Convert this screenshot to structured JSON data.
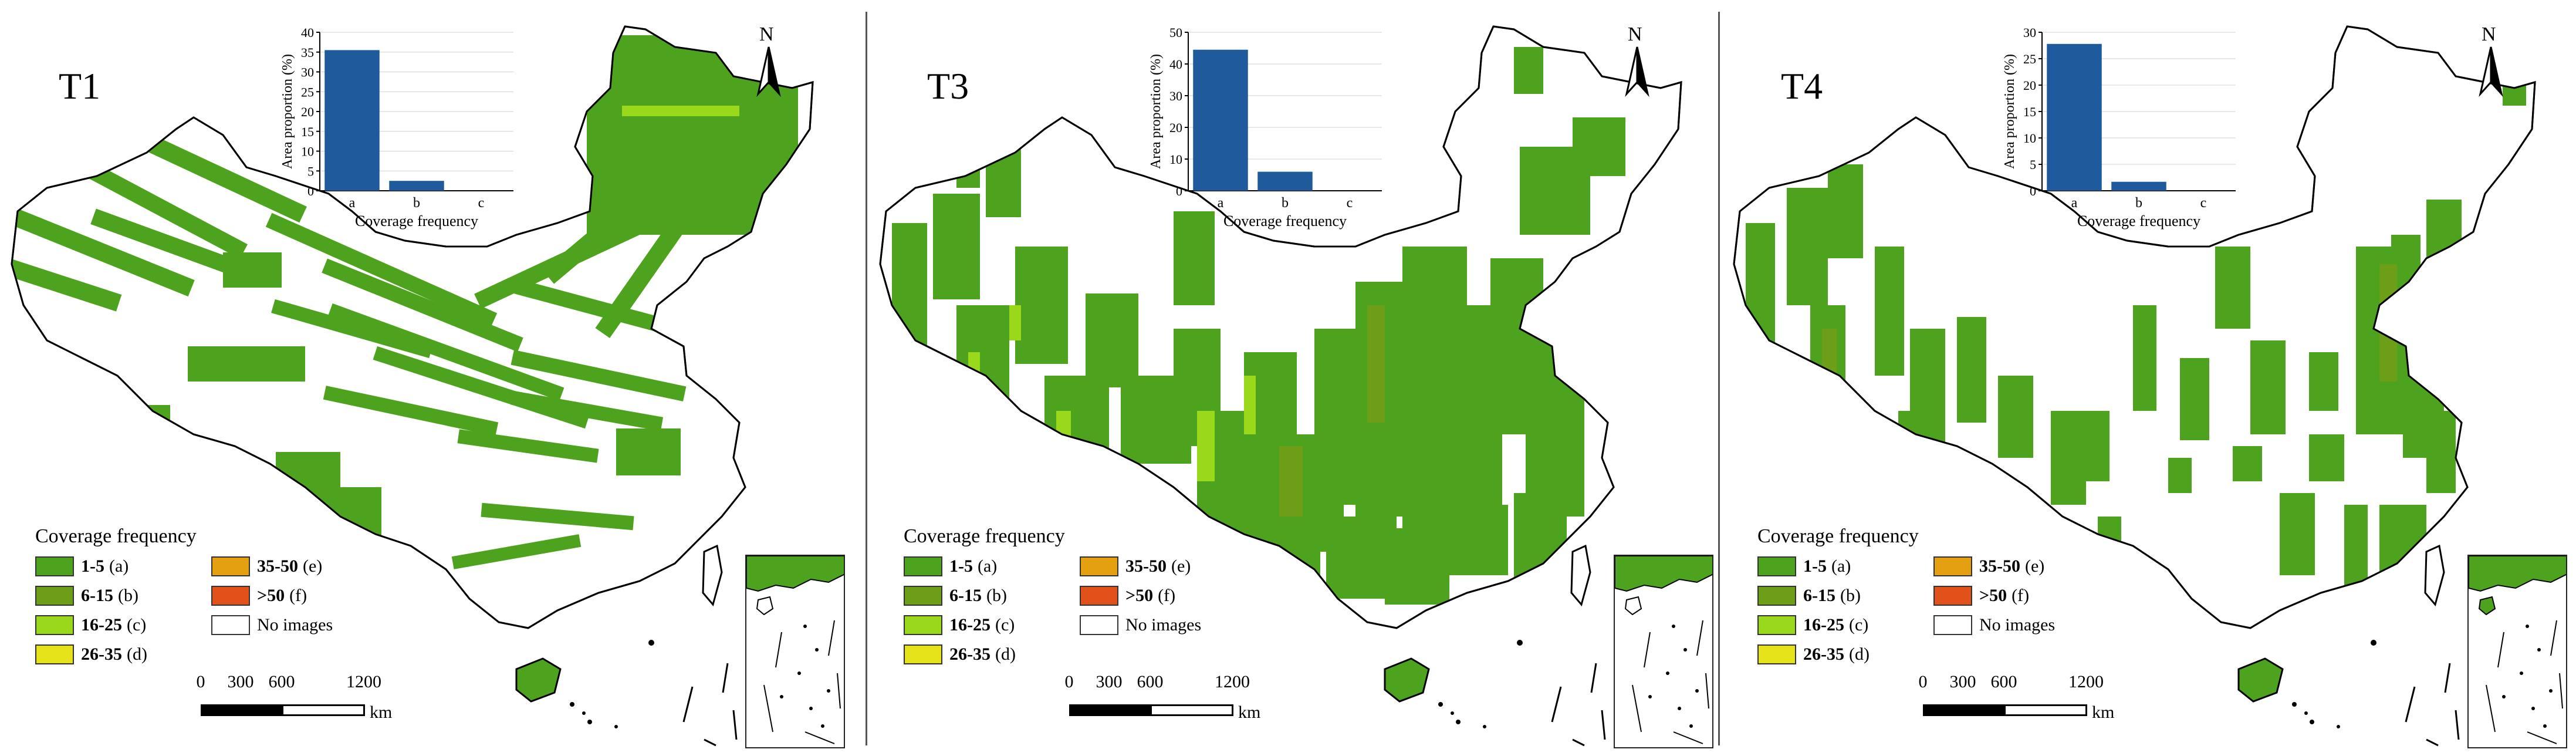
{
  "colors": {
    "cls_a": "#4ea31e",
    "cls_b": "#6d9e18",
    "cls_c": "#9ad81b",
    "cls_d": "#e6e21a",
    "cls_e": "#e5a012",
    "cls_f": "#e0521a",
    "no_images": "#ffffff",
    "bar": "#1f5b9c"
  },
  "legend": {
    "title": "Coverage frequency",
    "items": [
      {
        "range": "1-5",
        "tag": "(a)",
        "color": "#4ea31e"
      },
      {
        "range": "6-15",
        "tag": "(b)",
        "color": "#6d9e18"
      },
      {
        "range": "16-25",
        "tag": "(c)",
        "color": "#9ad81b"
      },
      {
        "range": "26-35",
        "tag": "(d)",
        "color": "#e6e21a"
      },
      {
        "range": "35-50",
        "tag": "(e)",
        "color": "#e5a012"
      },
      {
        "range": ">50",
        "tag": "(f)",
        "color": "#e0521a"
      },
      {
        "range": "No images",
        "tag": "",
        "color": "#ffffff"
      }
    ]
  },
  "north_label": "N",
  "scale": {
    "ticks": [
      "0",
      "300",
      "600",
      "1200"
    ],
    "unit": "km"
  },
  "panels": [
    {
      "label": "T1"
    },
    {
      "label": "T3"
    },
    {
      "label": "T4"
    }
  ],
  "chart_data": [
    {
      "type": "bar",
      "panel": "T1",
      "categories": [
        "a",
        "b",
        "c"
      ],
      "values": [
        35.5,
        2.5,
        0
      ],
      "xlabel": "Coverage frequency",
      "ylabel": "Area proportion (%)",
      "ylim": [
        0,
        40
      ],
      "yticks": [
        0,
        5,
        10,
        15,
        20,
        25,
        30,
        35,
        40
      ],
      "grid": true
    },
    {
      "type": "bar",
      "panel": "T3",
      "categories": [
        "a",
        "b",
        "c"
      ],
      "values": [
        44.5,
        6,
        0
      ],
      "xlabel": "Coverage frequency",
      "ylabel": "Area proportion (%)",
      "ylim": [
        0,
        50
      ],
      "yticks": [
        0,
        10,
        20,
        30,
        40,
        50
      ],
      "grid": true
    },
    {
      "type": "bar",
      "panel": "T4",
      "categories": [
        "a",
        "b",
        "c"
      ],
      "values": [
        27.8,
        1.7,
        0
      ],
      "xlabel": "Coverage frequency",
      "ylabel": "Area proportion (%)",
      "ylim": [
        0,
        30
      ],
      "yticks": [
        0,
        5,
        10,
        15,
        20,
        25,
        30
      ],
      "grid": true
    }
  ]
}
